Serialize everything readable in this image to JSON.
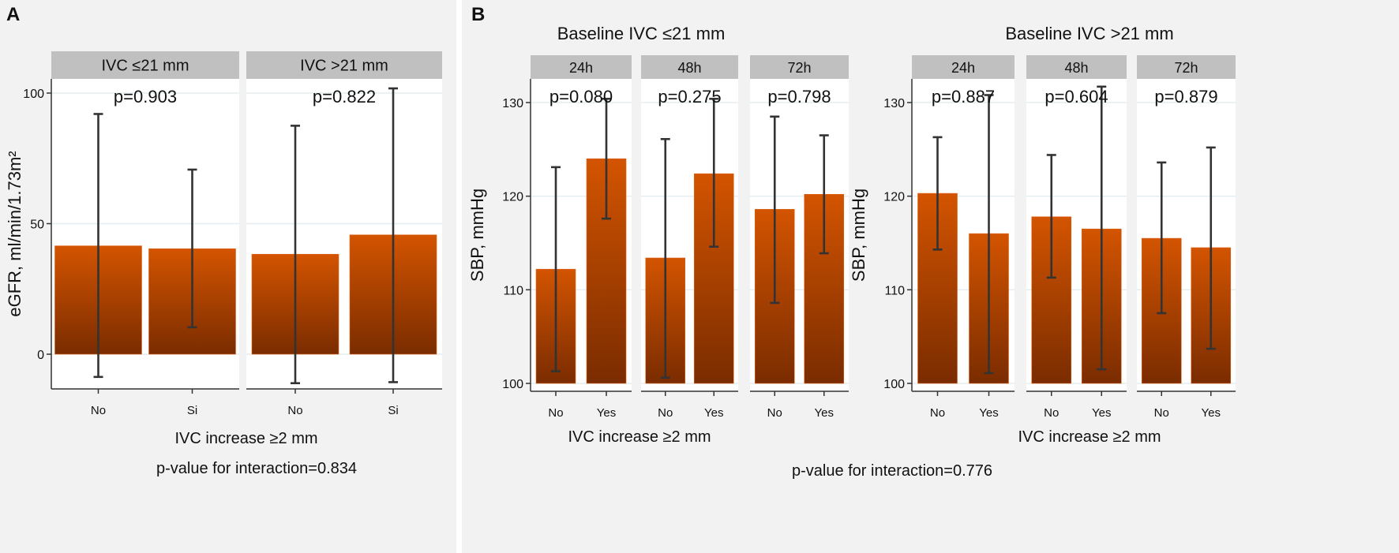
{
  "colors": {
    "panel_background": "#f2f2f2",
    "plot_background": "#ffffff",
    "strip": "#c0c0c0",
    "grid": "#e4eef1",
    "bar_top": "#d35400",
    "bar_bottom": "#7a2c00",
    "error_bar": "#333333"
  },
  "chart_data": [
    {
      "panel_label": "A",
      "type": "bar",
      "ylabel": "eGFR, ml/min/1.73m²",
      "xlabel": "IVC increase ≥2 mm",
      "footnote": "p-value for interaction=0.834",
      "ylim": [
        -14.5,
        105
      ],
      "yticks": [
        0,
        50,
        100
      ],
      "grid": true,
      "categories": [
        "No",
        "Si"
      ],
      "facets": [
        {
          "strip": "IVC ≤21 mm",
          "pvalue": "p=0.903",
          "values": [
            41.5,
            40.4
          ],
          "lower": [
            -8.7,
            10.3
          ],
          "upper": [
            92.0,
            70.7
          ]
        },
        {
          "strip": "IVC >21 mm",
          "pvalue": "p=0.822",
          "values": [
            38.3,
            45.7
          ],
          "lower": [
            -11.1,
            -10.7
          ],
          "upper": [
            87.5,
            101.8
          ]
        }
      ]
    },
    {
      "panel_label": "B",
      "type": "bar",
      "ylabel": "SBP, mmHg",
      "xlabel": "IVC increase ≥2 mm",
      "footnote": "p-value for interaction=0.776",
      "ylim": [
        99.2,
        132.6
      ],
      "yticks": [
        100,
        110,
        120,
        130
      ],
      "grid": true,
      "categories": [
        "No",
        "Yes"
      ],
      "groups": [
        {
          "title": "Baseline IVC ≤21 mm",
          "facets": [
            {
              "strip": "24h",
              "pvalue": "p=0.080",
              "values": [
                112.2,
                124.0
              ],
              "lower": [
                101.3,
                117.6
              ],
              "upper": [
                123.1,
                130.4
              ]
            },
            {
              "strip": "48h",
              "pvalue": "p=0.275",
              "values": [
                113.4,
                122.4
              ],
              "lower": [
                100.6,
                114.6
              ],
              "upper": [
                126.1,
                130.4
              ]
            },
            {
              "strip": "72h",
              "pvalue": "p=0.798",
              "values": [
                118.6,
                120.2
              ],
              "lower": [
                108.6,
                113.9
              ],
              "upper": [
                128.5,
                126.5
              ]
            }
          ]
        },
        {
          "title": "Baseline IVC >21 mm",
          "facets": [
            {
              "strip": "24h",
              "pvalue": "p=0.887",
              "values": [
                120.3,
                116.0
              ],
              "lower": [
                114.3,
                101.1
              ],
              "upper": [
                126.3,
                130.8
              ]
            },
            {
              "strip": "48h",
              "pvalue": "p=0.604",
              "values": [
                117.8,
                116.5
              ],
              "lower": [
                111.3,
                101.5
              ],
              "upper": [
                124.4,
                131.7
              ]
            },
            {
              "strip": "72h",
              "pvalue": "p=0.879",
              "values": [
                115.5,
                114.5
              ],
              "lower": [
                107.5,
                103.7
              ],
              "upper": [
                123.6,
                125.2
              ]
            }
          ]
        }
      ]
    }
  ]
}
